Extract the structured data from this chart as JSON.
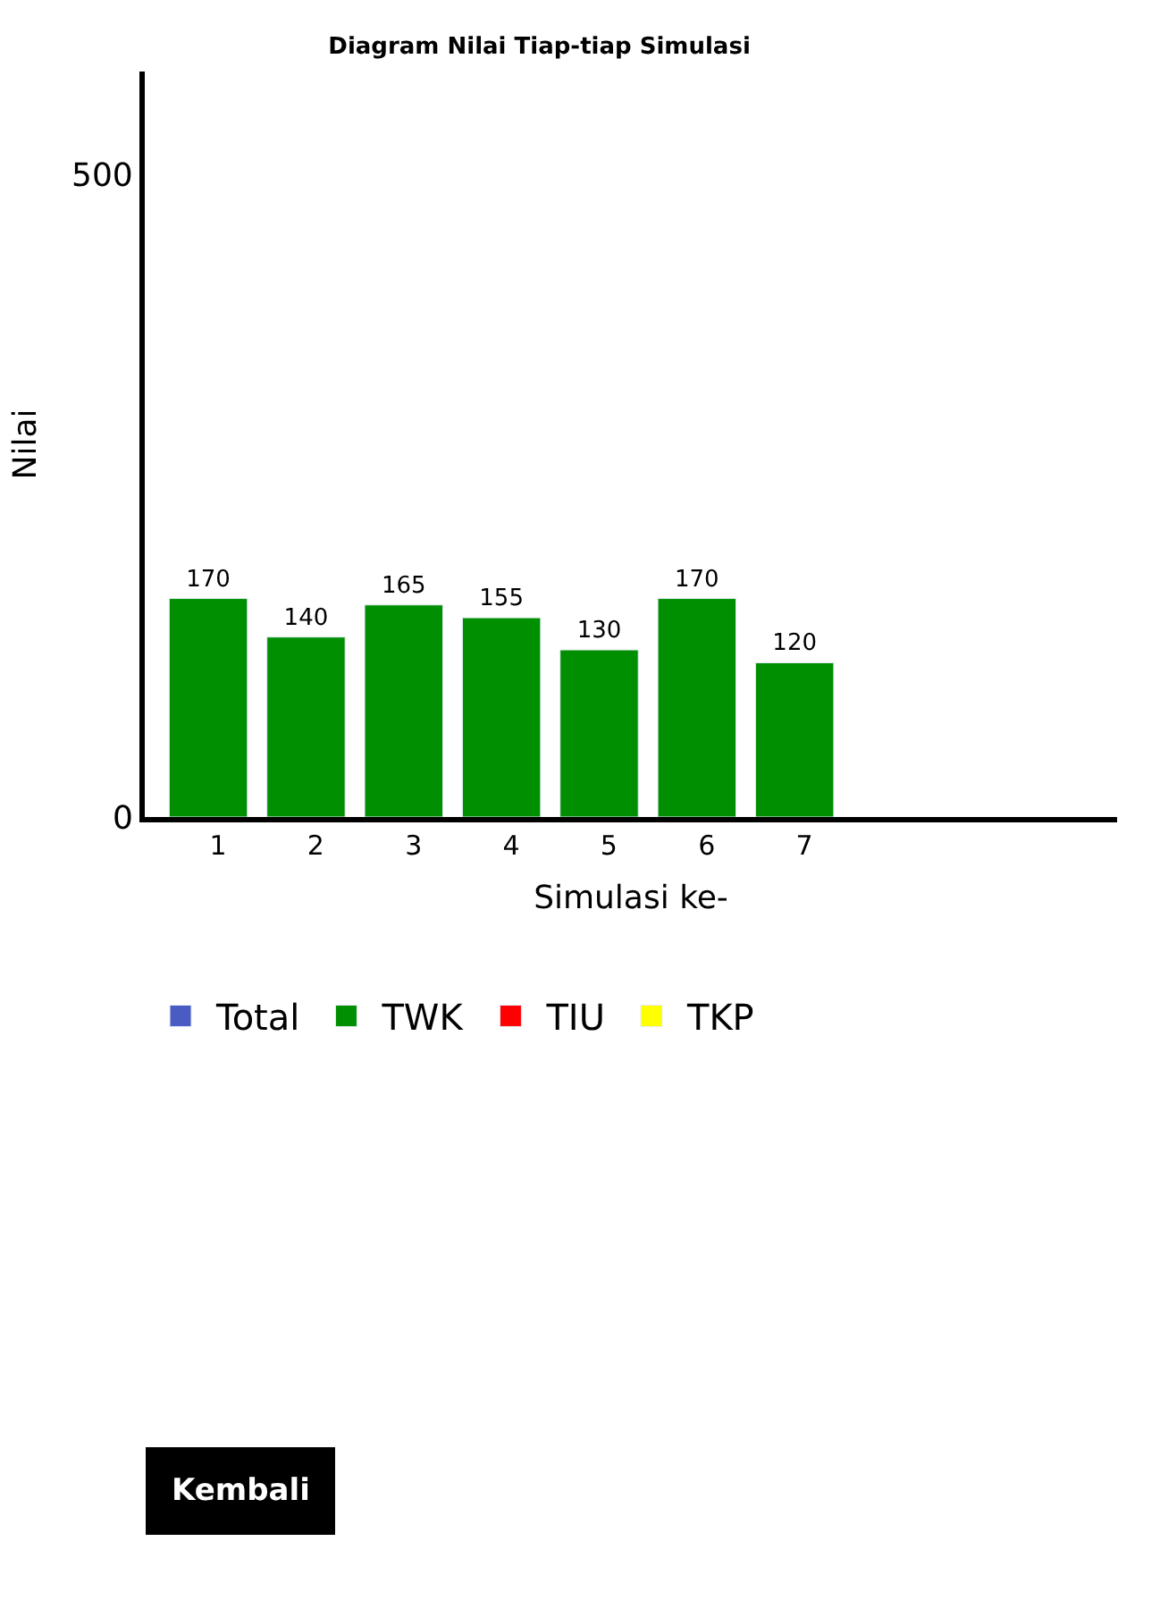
{
  "chart_data": {
    "type": "bar",
    "title": "Diagram Nilai Tiap-tiap Simulasi",
    "xlabel": "Simulasi ke-",
    "ylabel": "Nilai",
    "categories": [
      "1",
      "2",
      "3",
      "4",
      "5",
      "6",
      "7"
    ],
    "series": [
      {
        "name": "Total",
        "color": "#4a5cc4",
        "values": [
          null,
          null,
          null,
          null,
          null,
          null,
          null
        ]
      },
      {
        "name": "TWK",
        "color": "#008f00",
        "values": [
          170,
          140,
          165,
          155,
          130,
          170,
          120
        ]
      },
      {
        "name": "TIU",
        "color": "#ff0000",
        "values": [
          null,
          null,
          null,
          null,
          null,
          null,
          null
        ]
      },
      {
        "name": "TKP",
        "color": "#ffff00",
        "values": [
          null,
          null,
          null,
          null,
          null,
          null,
          null
        ]
      }
    ],
    "data_labels": true,
    "ylim": [
      0,
      580
    ],
    "yticks": [
      0,
      500
    ],
    "legend": "bottom",
    "annotations": [
      "Kembali"
    ]
  }
}
